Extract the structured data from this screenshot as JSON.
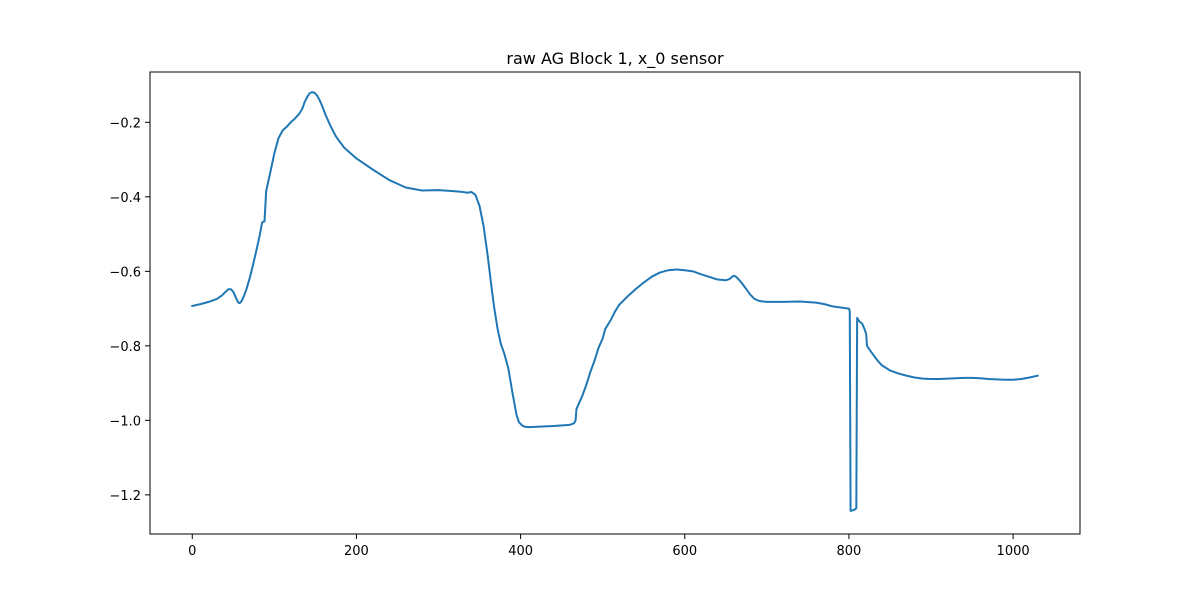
{
  "chart_data": {
    "type": "line",
    "title": "raw AG Block 1, x_0 sensor",
    "xlabel": "",
    "ylabel": "",
    "xlim": [
      -51.5,
      1081.5
    ],
    "ylim": [
      -1.305,
      -0.065
    ],
    "xticks": [
      0,
      200,
      400,
      600,
      800,
      1000
    ],
    "xtick_labels": [
      "0",
      "200",
      "400",
      "600",
      "800",
      "1000"
    ],
    "yticks": [
      -1.2,
      -1.0,
      -0.8,
      -0.6,
      -0.4,
      -0.2
    ],
    "ytick_labels": [
      "−1.2",
      "−1.0",
      "−0.8",
      "−0.6",
      "−0.4",
      "−0.2"
    ],
    "grid": false,
    "color": "#1f77b4",
    "series": [
      {
        "x": [
          0,
          10,
          20,
          30,
          36,
          40,
          44,
          47,
          50,
          53,
          56,
          58,
          60,
          63,
          66,
          70,
          74,
          78,
          82,
          85,
          86,
          88,
          90,
          95,
          100,
          105,
          110,
          115,
          120,
          125,
          130,
          134,
          137,
          140,
          143,
          146,
          149,
          152,
          155,
          158,
          162,
          168,
          175,
          185,
          200,
          220,
          240,
          260,
          280,
          300,
          320,
          330,
          335,
          340,
          345,
          350,
          355,
          360,
          365,
          368,
          372,
          376,
          380,
          385,
          390,
          395,
          398,
          402,
          405,
          410,
          420,
          440,
          460,
          465,
          467,
          468,
          470,
          475,
          480,
          485,
          490,
          495,
          500,
          503,
          505,
          510,
          515,
          520,
          530,
          540,
          550,
          560,
          570,
          580,
          590,
          600,
          610,
          620,
          630,
          640,
          650,
          655,
          658,
          660,
          662,
          665,
          670,
          675,
          680,
          685,
          690,
          695,
          700,
          710,
          720,
          740,
          760,
          770,
          780,
          790,
          800,
          801,
          802,
          804,
          806,
          808,
          809,
          810,
          813,
          816,
          819,
          821,
          822,
          825,
          830,
          835,
          840,
          850,
          860,
          870,
          880,
          890,
          900,
          910,
          920,
          930,
          940,
          950,
          960,
          970,
          980,
          990,
          1000,
          1010,
          1020,
          1030
        ],
        "y": [
          -0.693,
          -0.688,
          -0.682,
          -0.674,
          -0.665,
          -0.656,
          -0.648,
          -0.648,
          -0.655,
          -0.67,
          -0.684,
          -0.685,
          -0.68,
          -0.666,
          -0.648,
          -0.618,
          -0.583,
          -0.545,
          -0.505,
          -0.47,
          -0.467,
          -0.466,
          -0.385,
          -0.335,
          -0.283,
          -0.243,
          -0.222,
          -0.212,
          -0.2,
          -0.19,
          -0.178,
          -0.164,
          -0.145,
          -0.132,
          -0.122,
          -0.119,
          -0.121,
          -0.128,
          -0.14,
          -0.155,
          -0.178,
          -0.208,
          -0.238,
          -0.268,
          -0.297,
          -0.327,
          -0.355,
          -0.375,
          -0.383,
          -0.382,
          -0.385,
          -0.387,
          -0.389,
          -0.387,
          -0.395,
          -0.425,
          -0.48,
          -0.56,
          -0.65,
          -0.7,
          -0.755,
          -0.795,
          -0.82,
          -0.86,
          -0.925,
          -0.985,
          -1.005,
          -1.014,
          -1.017,
          -1.018,
          -1.017,
          -1.015,
          -1.012,
          -1.008,
          -1.0,
          -0.97,
          -0.96,
          -0.935,
          -0.905,
          -0.87,
          -0.84,
          -0.805,
          -0.78,
          -0.755,
          -0.748,
          -0.73,
          -0.708,
          -0.69,
          -0.668,
          -0.648,
          -0.63,
          -0.614,
          -0.603,
          -0.597,
          -0.595,
          -0.597,
          -0.6,
          -0.608,
          -0.615,
          -0.622,
          -0.624,
          -0.62,
          -0.614,
          -0.612,
          -0.614,
          -0.62,
          -0.633,
          -0.648,
          -0.663,
          -0.674,
          -0.679,
          -0.681,
          -0.682,
          -0.682,
          -0.682,
          -0.681,
          -0.684,
          -0.688,
          -0.694,
          -0.697,
          -0.7,
          -0.707,
          -1.243,
          -1.242,
          -1.24,
          -1.238,
          -1.235,
          -0.725,
          -0.735,
          -0.74,
          -0.755,
          -0.768,
          -0.8,
          -0.81,
          -0.825,
          -0.84,
          -0.852,
          -0.866,
          -0.874,
          -0.88,
          -0.885,
          -0.888,
          -0.889,
          -0.889,
          -0.888,
          -0.887,
          -0.886,
          -0.886,
          -0.887,
          -0.889,
          -0.89,
          -0.891,
          -0.891,
          -0.889,
          -0.885,
          -0.88
        ]
      }
    ]
  }
}
